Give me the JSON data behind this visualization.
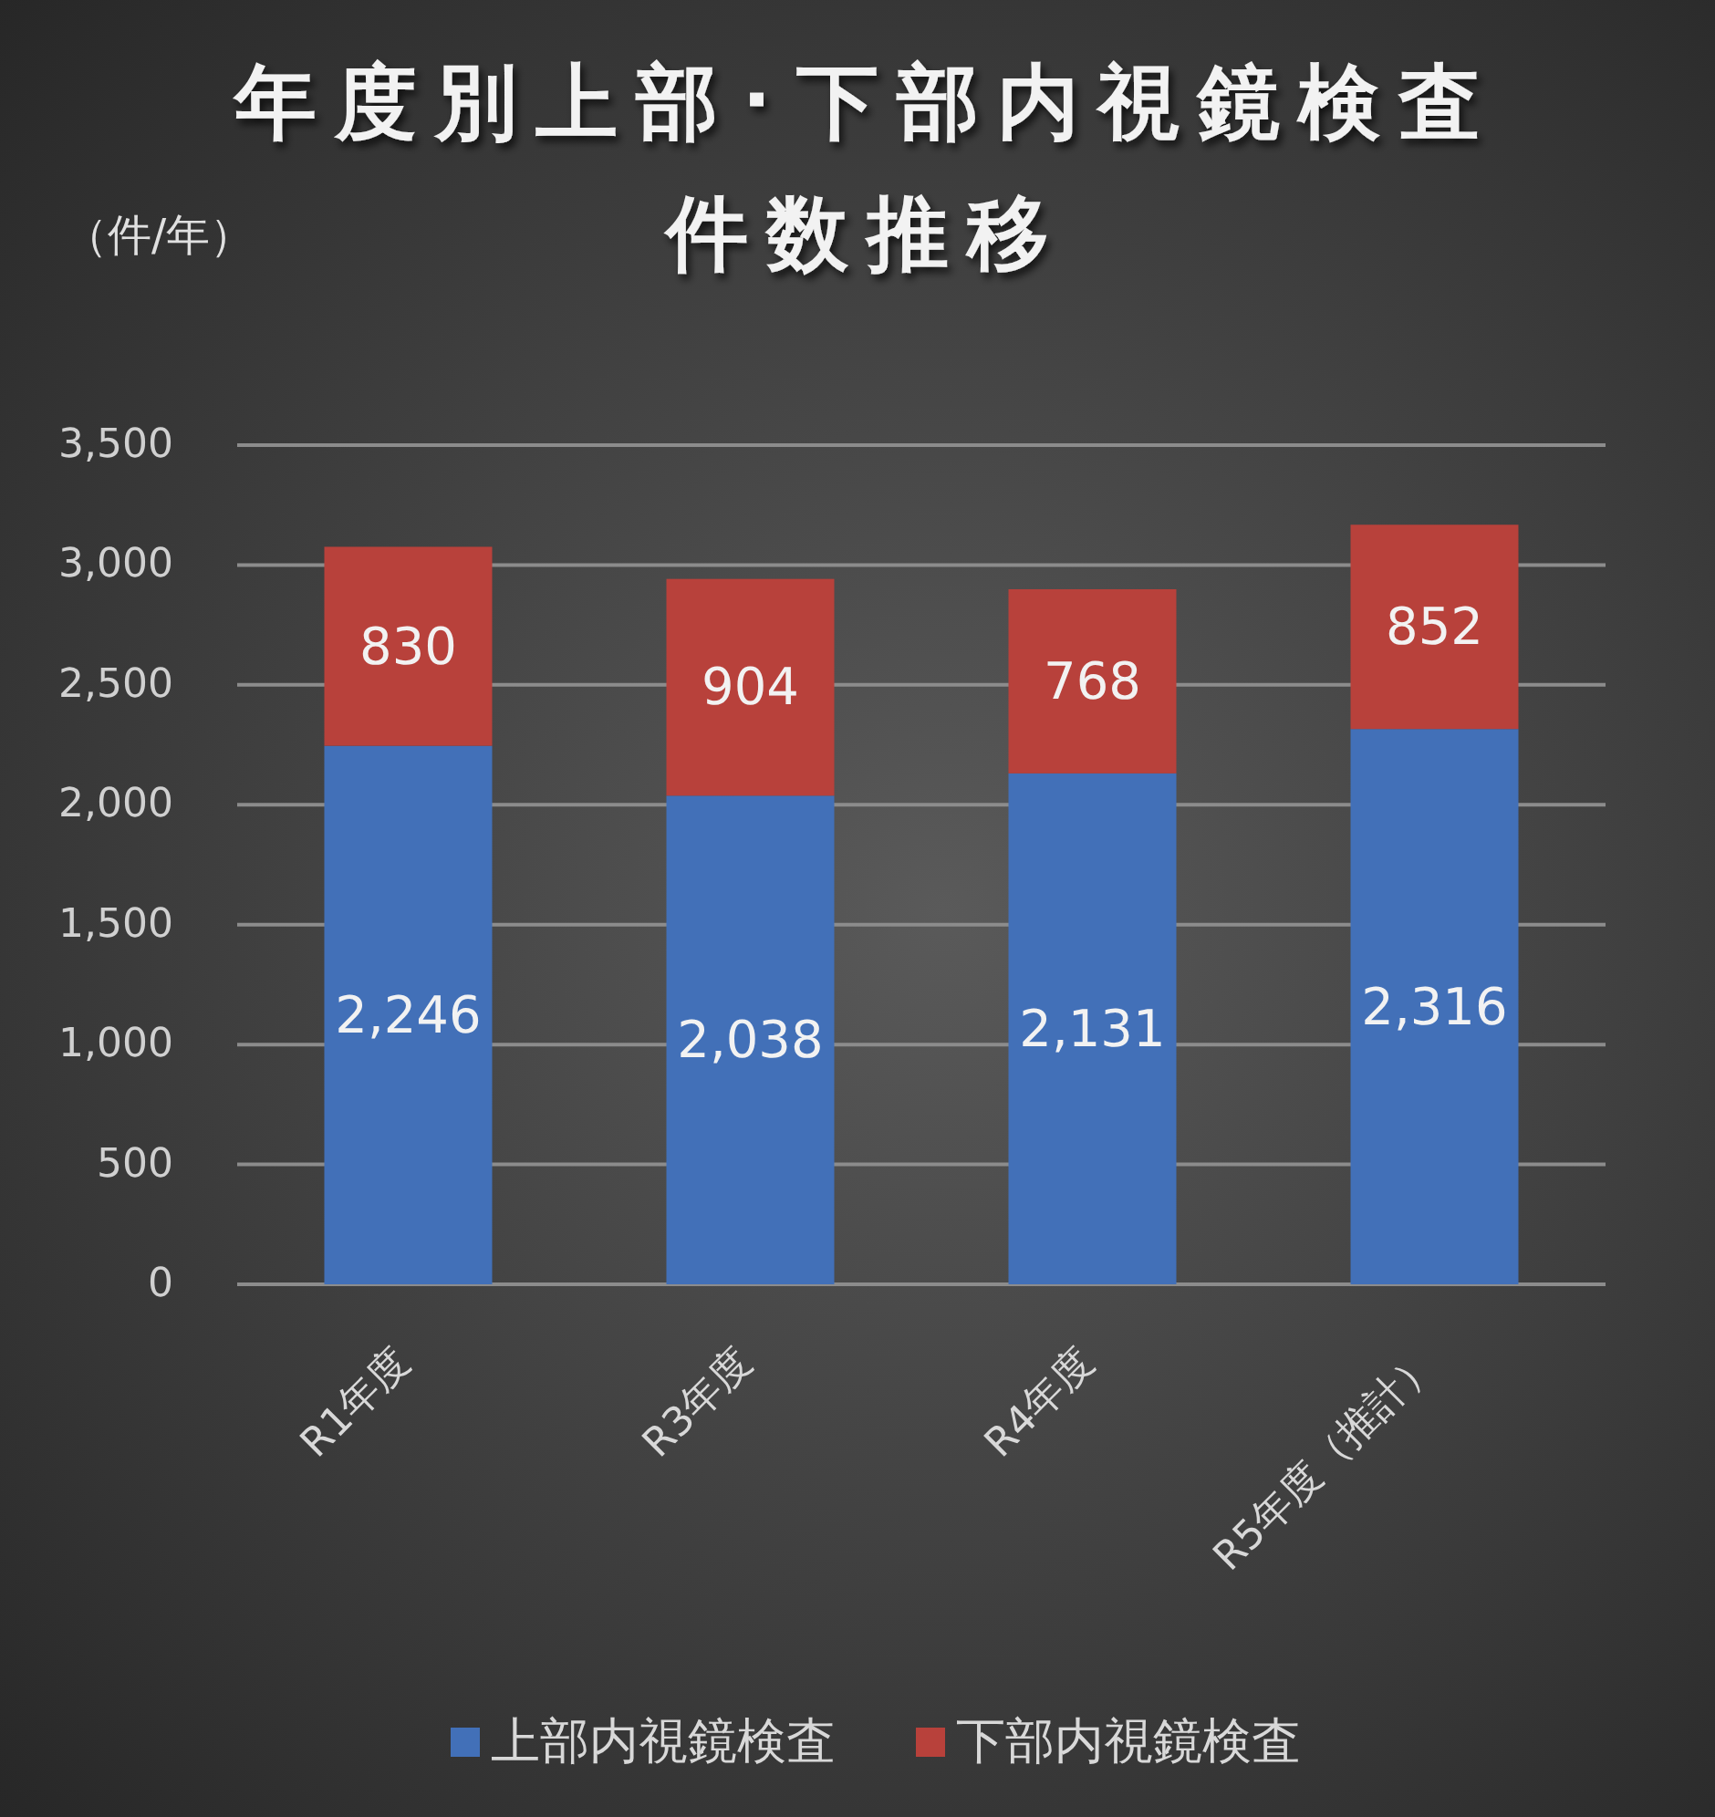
{
  "chart_data": {
    "type": "bar",
    "title": "年度別上部･下部内視鏡検査件数推移",
    "ylabel": "（件/年）",
    "categories": [
      "R1年度",
      "R3年度",
      "R4年度",
      "R5年度（推計）"
    ],
    "stacked": true,
    "series": [
      {
        "name": "上部内視鏡検査",
        "color": "#4270b8",
        "values": [
          2246,
          2038,
          2131,
          2316
        ],
        "value_labels": [
          "2,246",
          "2,038",
          "2,131",
          "2,316"
        ]
      },
      {
        "name": "下部内視鏡検査",
        "color": "#b8413b",
        "values": [
          830,
          904,
          768,
          852
        ],
        "value_labels": [
          "830",
          "904",
          "768",
          "852"
        ]
      }
    ],
    "ylim": [
      0,
      3500
    ],
    "yticks": [
      0,
      500,
      {
        "value": 1000,
        "label": "1,000"
      },
      {
        "value": 1500,
        "label": "1,500"
      },
      {
        "value": 2000,
        "label": "2,000"
      },
      {
        "value": 2500,
        "label": "2,500"
      },
      {
        "value": 3000,
        "label": "3,000"
      },
      {
        "value": 3500,
        "label": "3,500"
      }
    ],
    "grid": "y",
    "legend": "bottom"
  }
}
